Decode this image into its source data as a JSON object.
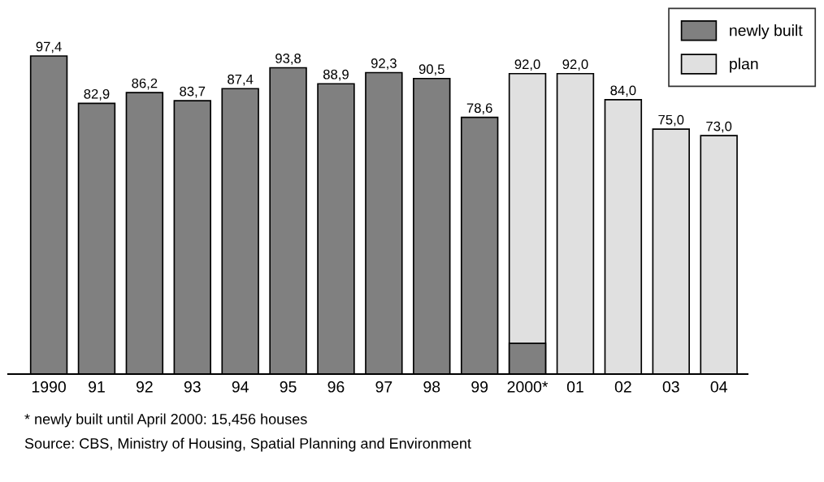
{
  "chart_data": {
    "type": "bar",
    "categories": [
      "1990",
      "91",
      "92",
      "93",
      "94",
      "95",
      "96",
      "97",
      "98",
      "99",
      "2000*",
      "01",
      "02",
      "03",
      "04"
    ],
    "series": [
      {
        "name": "plan",
        "color": "#e0e0e0",
        "values": [
          null,
          null,
          null,
          null,
          null,
          null,
          null,
          null,
          null,
          null,
          92.0,
          92.0,
          84.0,
          75.0,
          73.0
        ],
        "value_labels": [
          null,
          null,
          null,
          null,
          null,
          null,
          null,
          null,
          null,
          null,
          "92,0",
          "92,0",
          "84,0",
          "75,0",
          "73,0"
        ]
      },
      {
        "name": "newly built",
        "color": "#808080",
        "values": [
          97.4,
          82.9,
          86.2,
          83.7,
          87.4,
          93.8,
          88.9,
          92.3,
          90.5,
          78.6,
          9.4,
          null,
          null,
          null,
          null
        ],
        "value_labels": [
          "97,4",
          "82,9",
          "86,2",
          "83,7",
          "87,4",
          "93,8",
          "88,9",
          "92,3",
          "90,5",
          "78,6",
          null,
          null,
          null,
          null,
          null
        ]
      }
    ],
    "legend": "top right",
    "annotations": [
      "* newly built until April 2000: 15,456 houses",
      "Source: CBS, Ministry of Housing, Spatial Planning and Environment"
    ]
  }
}
